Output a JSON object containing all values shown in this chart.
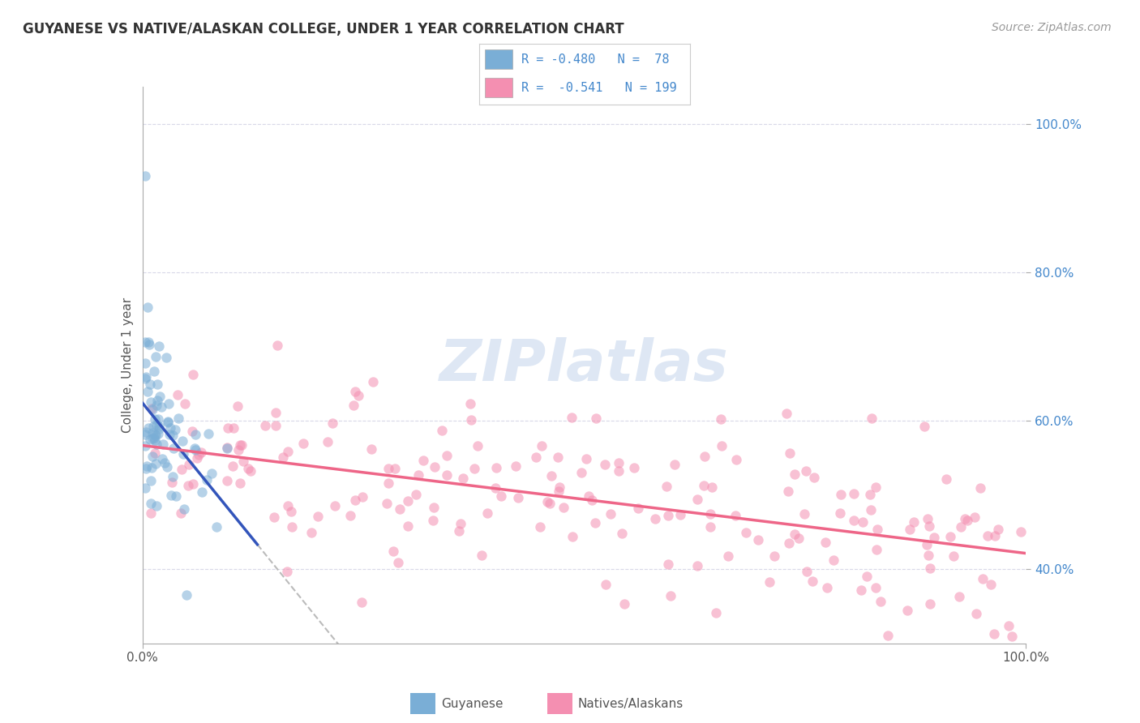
{
  "title": "GUYANESE VS NATIVE/ALASKAN COLLEGE, UNDER 1 YEAR CORRELATION CHART",
  "source": "Source: ZipAtlas.com",
  "ylabel": "College, Under 1 year",
  "right_yticks": [
    "40.0%",
    "60.0%",
    "80.0%",
    "100.0%"
  ],
  "right_ytick_vals": [
    0.4,
    0.6,
    0.8,
    1.0
  ],
  "blue_R": -0.48,
  "blue_N": 78,
  "pink_R": -0.541,
  "pink_N": 199,
  "blue_color": "#7aaed6",
  "pink_color": "#f48fb1",
  "blue_line_color": "#3355bb",
  "pink_line_color": "#ee6688",
  "dot_alpha": 0.55,
  "dot_size": 80,
  "xlim": [
    0.0,
    1.0
  ],
  "ylim": [
    0.3,
    1.05
  ],
  "bg_color": "#ffffff",
  "grid_color": "#d8d8e8",
  "watermark": "ZIPlatlas",
  "watermark_color": "#c8d8ee",
  "legend_blue_text": "R = -0.480   N =  78",
  "legend_pink_text": "R =  -0.541   N = 199",
  "legend_text_color": "#4488cc",
  "bottom_label_guyanese": "Guyanese",
  "bottom_label_natives": "Natives/Alaskans"
}
